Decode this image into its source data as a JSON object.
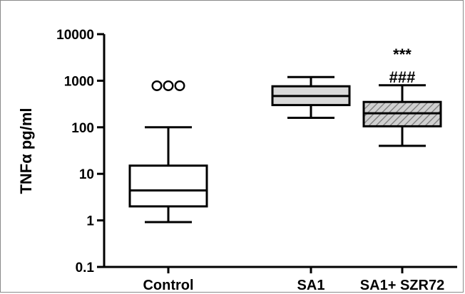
{
  "chart_data": {
    "type": "box",
    "ylabel": "TNFα pg/ml",
    "yscale": "log",
    "ylim": [
      0.1,
      10000
    ],
    "yticks": [
      {
        "value": 10000,
        "label": "10000"
      },
      {
        "value": 1000,
        "label": "1000"
      },
      {
        "value": 100,
        "label": "100"
      },
      {
        "value": 10,
        "label": "10"
      },
      {
        "value": 1,
        "label": "1"
      },
      {
        "value": 0.1,
        "label": "0.1"
      }
    ],
    "categories": [
      "Control",
      "SA1",
      "SA1+ SZR72"
    ],
    "boxes": [
      {
        "category": "Control",
        "whisker_low": 0.92,
        "q1": 2,
        "median": 4.4,
        "q3": 15,
        "whisker_high": 100,
        "fill": "white",
        "outlier_marker": "ooo",
        "outlier_value": 780
      },
      {
        "category": "SA1",
        "whisker_low": 160,
        "q1": 300,
        "median": 470,
        "q3": 760,
        "whisker_high": 1200,
        "fill": "light-gray"
      },
      {
        "category": "SA1+ SZR72",
        "whisker_low": 40,
        "q1": 105,
        "median": 200,
        "q3": 350,
        "whisker_high": 800,
        "fill": "hatched-gray"
      }
    ],
    "annotations": [
      {
        "category": "SA1+ SZR72",
        "text": "***",
        "value": 4000
      },
      {
        "category": "SA1+ SZR72",
        "text": "###",
        "value": 1300
      }
    ],
    "colors": {
      "box_gray": "#d9d9d9",
      "hatch_line": "#8c8c8c",
      "stroke": "#000000"
    }
  }
}
